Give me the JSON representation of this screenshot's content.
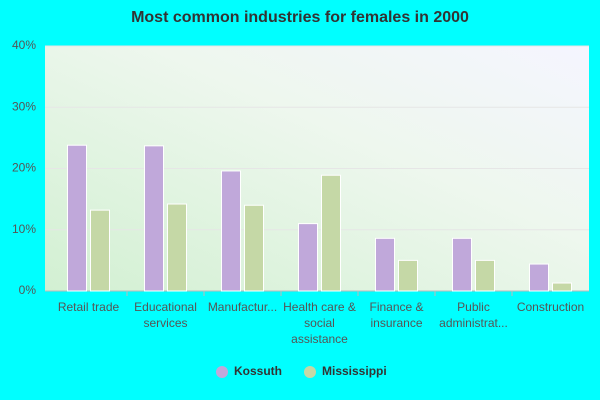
{
  "chart_data": {
    "type": "bar",
    "title": "Most common industries for females in 2000",
    "categories": [
      "Retail trade",
      "Educational services",
      "Manufactur...",
      "Health care & social assistance",
      "Finance & insurance",
      "Public administrat...",
      "Construction"
    ],
    "series": [
      {
        "name": "Kossuth",
        "color": "#c0a8da",
        "values": [
          23.8,
          23.7,
          19.6,
          11.0,
          8.6,
          8.6,
          4.4
        ]
      },
      {
        "name": "Mississippi",
        "color": "#c5d8a6",
        "values": [
          13.2,
          14.2,
          14.0,
          18.9,
          5.0,
          5.0,
          1.3
        ]
      }
    ],
    "ylim": [
      0,
      40
    ],
    "yticks": [
      {
        "value": 0,
        "label": "0%"
      },
      {
        "value": 10,
        "label": "10%"
      },
      {
        "value": 20,
        "label": "20%"
      },
      {
        "value": 30,
        "label": "30%"
      },
      {
        "value": 40,
        "label": "40%"
      }
    ],
    "grid": true
  }
}
